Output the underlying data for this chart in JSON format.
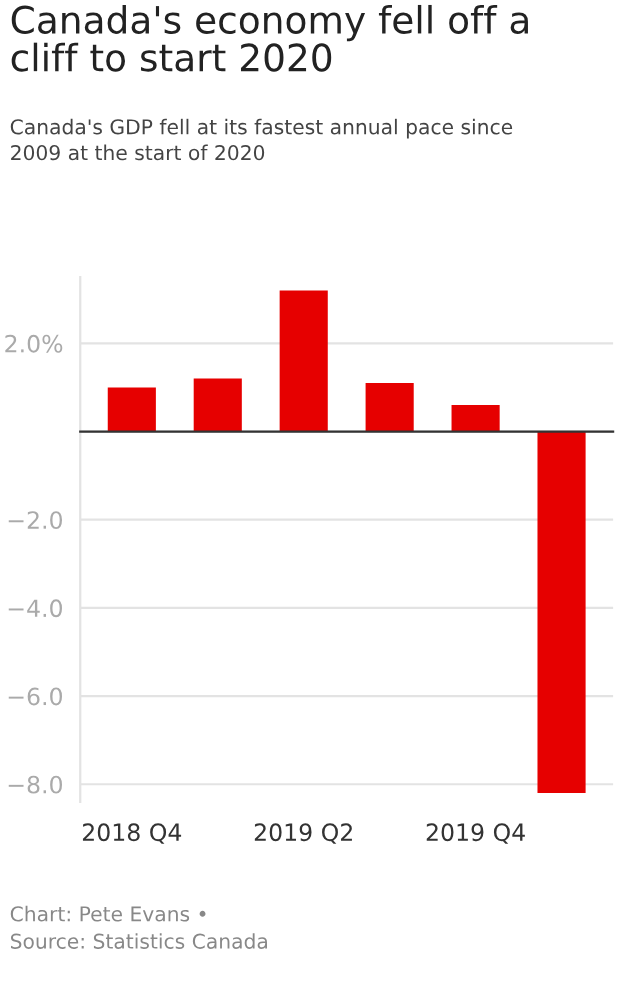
{
  "chart_data": {
    "type": "bar",
    "title": "Canada's economy fell off a\ncliff to start 2020",
    "subtitle": "Canada's GDP fell at its fastest annual pace since\n2009 at the start of 2020",
    "categories": [
      "2018 Q4",
      null,
      "2019 Q2",
      null,
      "2019 Q4",
      null
    ],
    "values": [
      1.0,
      1.2,
      3.2,
      1.1,
      0.6,
      -8.2
    ],
    "color": "#e60000",
    "ylim": [
      -8.4,
      3.5
    ],
    "yticks": [
      {
        "value": 2,
        "label": "2.0%"
      },
      {
        "value": 0,
        "label": null
      },
      {
        "value": -2,
        "label": "−2.0"
      },
      {
        "value": -4,
        "label": "−4.0"
      },
      {
        "value": -6,
        "label": "−6.0"
      },
      {
        "value": -8,
        "label": "−8.0"
      }
    ],
    "grid": "y",
    "legend": false,
    "annotations": [
      "Chart: Pete Evans •\nSource: Statistics Canada"
    ]
  }
}
